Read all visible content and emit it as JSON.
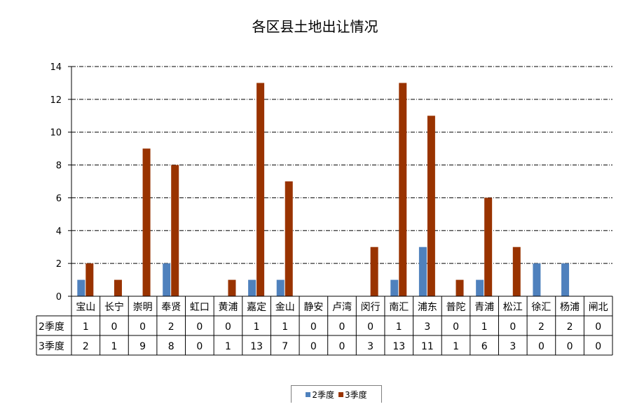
{
  "chart_data": {
    "type": "bar",
    "title": "各区县土地出让情况",
    "categories": [
      "宝山",
      "长宁",
      "崇明",
      "奉贤",
      "虹口",
      "黄浦",
      "嘉定",
      "金山",
      "静安",
      "卢湾",
      "闵行",
      "南汇",
      "浦东",
      "普陀",
      "青浦",
      "松江",
      "徐汇",
      "杨浦",
      "闸北"
    ],
    "series": [
      {
        "name": "2季度",
        "color": "#4f81bd",
        "values": [
          1,
          0,
          0,
          2,
          0,
          0,
          1,
          1,
          0,
          0,
          0,
          1,
          3,
          0,
          1,
          0,
          2,
          2,
          0
        ]
      },
      {
        "name": "3季度",
        "color": "#993300",
        "values": [
          2,
          1,
          9,
          8,
          0,
          1,
          13,
          7,
          0,
          0,
          3,
          13,
          11,
          1,
          6,
          3,
          0,
          0,
          0
        ]
      }
    ],
    "ylim": [
      0,
      14
    ],
    "yticks": [
      0,
      2,
      4,
      6,
      8,
      10,
      12,
      14
    ],
    "grid": true,
    "data_table": true,
    "legend_position": "bottom"
  }
}
